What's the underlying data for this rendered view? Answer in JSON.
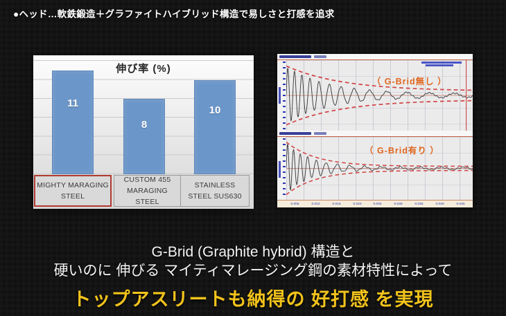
{
  "slide": {
    "header": "●ヘッド…軟鉄鍛造＋グラファイトハイブリッド構造で易しさと打感を追求",
    "caption_line1": "G-Brid (Graphite hybrid) 構造と",
    "caption_line2": "硬いのに 伸びる マイティマレージング鋼の素材特性によって",
    "caption_line3": "トップアスリートも納得の 好打感 を実現",
    "colors": {
      "background": "#141414",
      "header_text": "#ffffff",
      "caption_text": "#f4f4f4",
      "caption_highlight": "#f2c31b"
    }
  },
  "chart_data": [
    {
      "type": "bar",
      "title": "伸び率 (%)",
      "categories": [
        "MIGHTY MARAGING STEEL",
        "CUSTOM 455 MARAGING STEEL",
        "STAINLESS STEEL SUS630"
      ],
      "values": [
        11,
        8,
        10
      ],
      "ylim": [
        0,
        12.6
      ],
      "xlabel": "",
      "ylabel": "",
      "grid": true,
      "bar_color": "#6b96c9",
      "bar_border_color": "#5d87ba",
      "value_label_color": "#ffffff",
      "highlighted_category_index": 0,
      "highlight_border_color": "#b03a30"
    },
    {
      "type": "line",
      "subtype": "damped-vibration-waveform",
      "annotation": "（ G-Brid無し ）",
      "annotation_color": "#e0661e",
      "line_color": "#383838",
      "envelope_color": "#d24545",
      "center_line_color": "#c4766a",
      "envelope": {
        "start": 0.95,
        "tau": 0.3,
        "residual": 0.14
      },
      "waveform": {
        "start": 0.92,
        "tau": 0.22,
        "residual": 0.055,
        "f0": 30,
        "f1": 6,
        "chirp_k": 0.3,
        "ripple": 0.018,
        "ripple_f": 47
      },
      "marker_line_x": 0.965,
      "marker_line_color": "#cc3b3b"
    },
    {
      "type": "line",
      "subtype": "damped-vibration-waveform",
      "annotation": "（ G-Brid有り ）",
      "annotation_color": "#e0661e",
      "line_color": "#383838",
      "envelope_color": "#d24545",
      "center_line_color": "#c4766a",
      "envelope": {
        "start": 0.95,
        "tau": 0.16,
        "residual": 0.075
      },
      "waveform": {
        "start": 0.92,
        "tau": 0.13,
        "residual": 0.04,
        "f0": 34,
        "f1": 8,
        "chirp_k": 0.22,
        "ripple": 0.024,
        "ripple_f": 36
      },
      "x_tick_labels": [
        "0.005",
        "0.010",
        "0.015",
        "0.020",
        "0.025",
        "0.030",
        "0.035",
        "0.040",
        "0.045"
      ]
    }
  ]
}
